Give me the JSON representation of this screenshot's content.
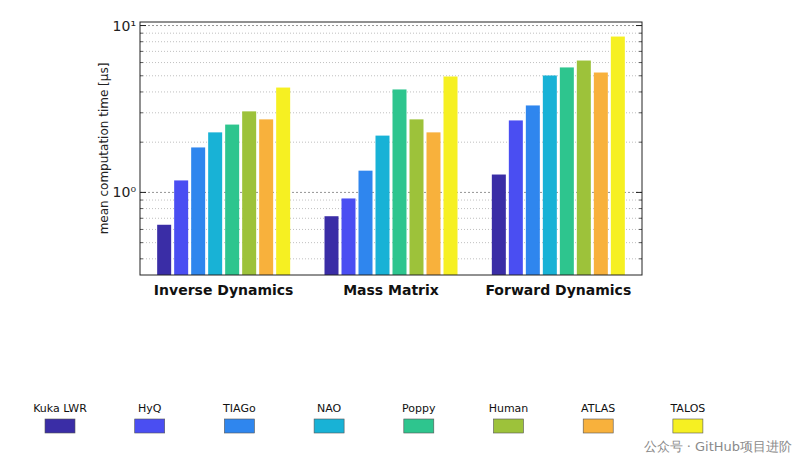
{
  "chart_data": {
    "type": "bar",
    "y_label": "mean computation time [μs]",
    "categories": [
      "Inverse Dynamics",
      "Mass Matrix",
      "Forward Dynamics"
    ],
    "series": [
      {
        "name": "Kuka LWR",
        "color": "#3a2da6",
        "values": [
          0.64,
          0.72,
          1.28
        ]
      },
      {
        "name": "HyQ",
        "color": "#4a4ef2",
        "values": [
          1.18,
          0.92,
          2.7
        ]
      },
      {
        "name": "TIAGo",
        "color": "#2f86ee",
        "values": [
          1.86,
          1.35,
          3.32
        ]
      },
      {
        "name": "NAO",
        "color": "#18b2d6",
        "values": [
          2.29,
          2.19,
          5.02
        ]
      },
      {
        "name": "Poppy",
        "color": "#2ec58e",
        "values": [
          2.55,
          4.14,
          5.61
        ]
      },
      {
        "name": "Human",
        "color": "#9dc23a",
        "values": [
          3.06,
          2.74,
          6.17
        ]
      },
      {
        "name": "ATLAS",
        "color": "#f8b13c",
        "values": [
          2.74,
          2.29,
          5.23
        ]
      },
      {
        "name": "TALOS",
        "color": "#f6f022",
        "values": [
          4.25,
          4.95,
          8.59
        ]
      }
    ],
    "ylim": [
      0.32,
      10.5
    ],
    "yticks": [
      {
        "value": 1,
        "label": "10⁰"
      },
      {
        "value": 10,
        "label": "10¹"
      }
    ],
    "log": "y",
    "grid": true,
    "legend": "bottom",
    "watermark": "公众号 · GitHub项目进阶"
  }
}
